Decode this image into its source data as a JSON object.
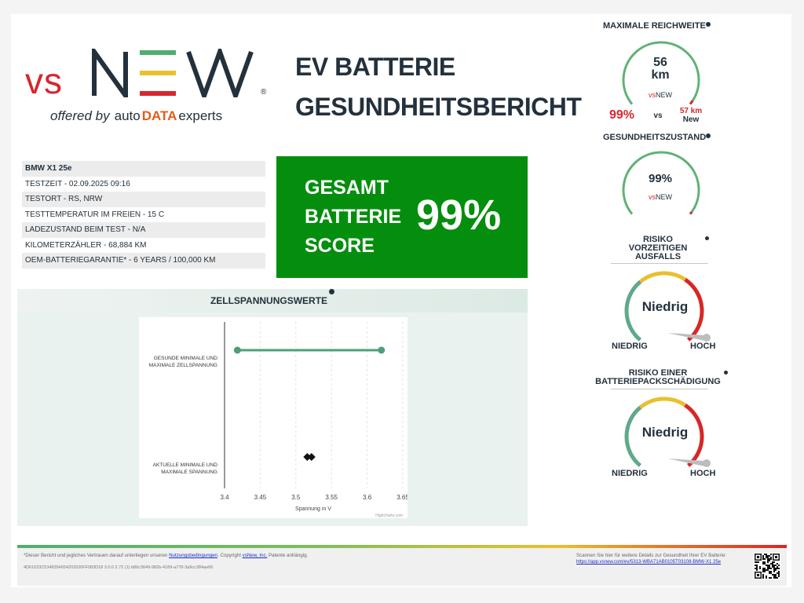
{
  "brand": {
    "vs": "vs",
    "new": "NEW",
    "reg": "®",
    "offered_by": "offered by",
    "auto": "auto",
    "data": "DATA",
    "experts": "experts",
    "colors": {
      "red": "#d7262d",
      "green": "#4fae6f",
      "yellow": "#e9c02e",
      "orange": "#e45d1a",
      "dark": "#23313d"
    }
  },
  "title": {
    "line1": "EV BATTERIE",
    "line2": "GESUNDHEITSBERICHT"
  },
  "vehicle": {
    "model": "BMW X1 25e",
    "rows": [
      "TESTZEIT - 02.09.2025 09:16",
      "TESTORT - RS, NRW",
      "TESTTEMPERATUR IM FREIEN - 15 C",
      "LADEZUSTAND BEIM TEST - N/A",
      "KILOMETERZÄHLER - 68,884 KM",
      "OEM-BATTERIEGARANTIE* - 6 YEARS / 100,000 KM"
    ]
  },
  "score": {
    "line1": "GESAMT",
    "line2": "BATTERIE",
    "line3": "SCORE",
    "value": "99%",
    "color": "#058e0e"
  },
  "cell_chart": {
    "title": "ZELLSPANNUNGSWERTE",
    "credit": "Highcharts.com"
  },
  "chart_data": {
    "type": "scatter",
    "title": "ZELLSPANNUNGSWERTE",
    "categories": [
      "GESUNDE MINIMALE UND MAXIMALE ZELLSPANNUNG",
      "AKTUELLE MINIMALE UND MAXIMALE SPANNUNG"
    ],
    "category_lines": [
      [
        "GESUNDE MINIMALE UND",
        "MAXIMALE ZELLSPANNUNG"
      ],
      [
        "AKTUELLE MINIMALE UND",
        "MAXIMALE SPANNUNG"
      ]
    ],
    "xlabel": "Spannung in V",
    "xlim": [
      3.4,
      3.65
    ],
    "xticks": [
      "3.4",
      "3.45",
      "3.5",
      "3.55",
      "3.6",
      "3.65"
    ],
    "series": [
      {
        "category": 0,
        "min": 3.418,
        "max": 3.62,
        "color": "#4d9f7a",
        "marker": "circle"
      },
      {
        "category": 1,
        "min": 3.516,
        "max": 3.522,
        "color": "#111111",
        "marker": "diamond"
      }
    ]
  },
  "range": {
    "title": "MAXIMALE REICHWEITE",
    "value": "56",
    "unit": "km",
    "pct": "99%",
    "vs": "vs",
    "new_value": "57 km",
    "new_label": "New",
    "fill": 0.98
  },
  "health": {
    "title": "GESUNDHEITSZUSTAND",
    "value": "99%",
    "fill": 0.99
  },
  "risk1": {
    "title_l1": "RISIKO",
    "title_l2": "VORZEITIGEN",
    "title_l3": "AUSFALLS",
    "value": "Niedrig",
    "low": "NIEDRIG",
    "high": "HOCH",
    "level": 0.08
  },
  "risk2": {
    "title_l1": "RISIKO EINER",
    "title_l2": "BATTERIEPACKSCHÄDIGUNG",
    "value": "Niedrig",
    "low": "NIEDRIG",
    "high": "HOCH",
    "level": 0.08
  },
  "mini_logo": {
    "vs": "vs",
    "new": "NEW"
  },
  "footer": {
    "disclaimer_a": "*Dieser Bericht und jegliches Vertrauen darauf unterliegen unseren ",
    "terms": "Nutzungsbedingungen",
    "disclaimer_b": ". Copyright ",
    "company": "vsNew, Inc.",
    "disclaimer_c": " Patente anhängig.",
    "report_id": "4D61023C5348354654202020FF083D18 3.0.0 2.72 (1) b86c3649-982b-4189-a778-3a9cc384ae66",
    "scan_text": "Scannen Sie hier für weitere Details zur Gesundheit Ihrer EV Batterie:",
    "scan_link": "https://app.vsnew.com/ev/5313-WBA71AB0105T03108-BMW-X1 25e"
  }
}
